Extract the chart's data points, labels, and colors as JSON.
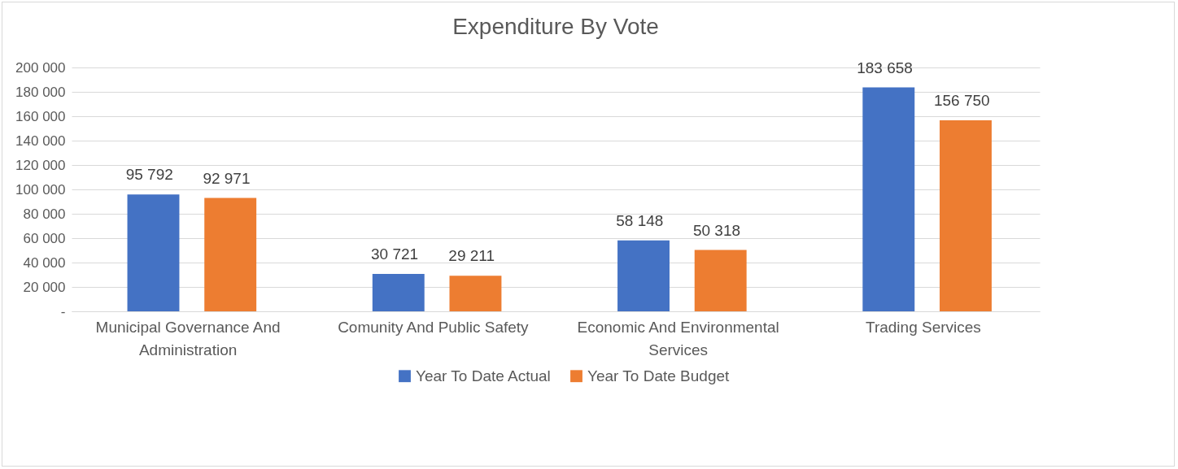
{
  "chart_data": {
    "type": "bar",
    "title": "Expenditure By Vote",
    "categories": [
      "Municipal Governance And Administration",
      "Comunity And Public Safety",
      "Economic And Environmental Services",
      "Trading Services"
    ],
    "series": [
      {
        "name": "Year To Date Actual",
        "color": "#4472c4",
        "values": [
          95792,
          30721,
          58148,
          183658
        ],
        "value_labels": [
          "95 792",
          "30 721",
          "58 148",
          "183 658"
        ]
      },
      {
        "name": "Year To Date Budget",
        "color": "#ed7d31",
        "values": [
          92971,
          29211,
          50318,
          156750
        ],
        "value_labels": [
          "92 971",
          "29 211",
          "50 318",
          "156 750"
        ]
      }
    ],
    "ylim": [
      0,
      200000
    ],
    "yticks": [
      {
        "value": 0,
        "label": "-"
      },
      {
        "value": 20000,
        "label": "20 000"
      },
      {
        "value": 40000,
        "label": "40 000"
      },
      {
        "value": 60000,
        "label": "60 000"
      },
      {
        "value": 80000,
        "label": "80 000"
      },
      {
        "value": 100000,
        "label": "100 000"
      },
      {
        "value": 120000,
        "label": "120 000"
      },
      {
        "value": 140000,
        "label": "140 000"
      },
      {
        "value": 160000,
        "label": "160 000"
      },
      {
        "value": 180000,
        "label": "180 000"
      },
      {
        "value": 200000,
        "label": "200 000"
      }
    ],
    "grid": "y",
    "legend": "bottom"
  }
}
